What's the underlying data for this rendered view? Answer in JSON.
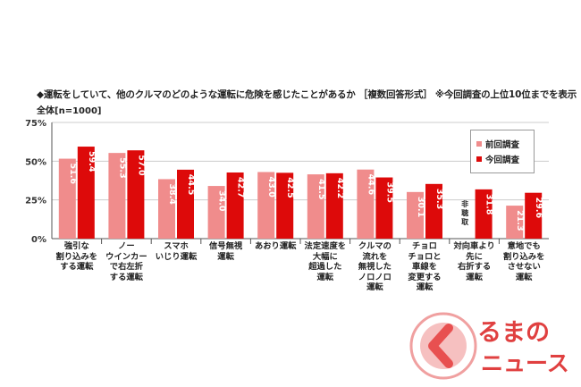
{
  "title": "◆運転をしていて、他のクルマのどのような運転に危険を感じたことがあるか ［複数回答形式］ ※今回調査の上位10位までを表示",
  "sample": "全体[n=1000]",
  "logo_text": [
    "るまの",
    "ニュース"
  ],
  "colors": {
    "previous": "#f08c8c",
    "current": "#dd0a0a",
    "grid": "#cccccc",
    "axis": "#555555"
  },
  "chart_data": {
    "type": "bar",
    "ylim": [
      0,
      75
    ],
    "yticks": [
      "0%",
      "25%",
      "50%",
      "75%"
    ],
    "grid": true,
    "legend_position": "top-right",
    "categories": [
      "強引な\n割り込みを\nする運転",
      "ノー\nウインカー\nで右左折\nする運転",
      "スマホ\nいじり運転",
      "信号無視\n運転",
      "あおり運転",
      "法定速度を\n大幅に\n超過した\n運転",
      "クルマの\n流れを\n無視した\nノロノロ\n運転",
      "チョロ\nチョロと\n車線を\n変更する\n運転",
      "対向車より\n先に\n右折する\n運転",
      "意地でも\n割り込みを\nさせない\n運転"
    ],
    "series": [
      {
        "name": "前回調査",
        "values": [
          51.6,
          55.3,
          38.4,
          34.0,
          43.0,
          41.5,
          44.6,
          30.1,
          null,
          21.3
        ],
        "labels": [
          "51.6",
          "55.3",
          "38.4",
          "34.0",
          "43.0",
          "41.5",
          "44.6",
          "30.1",
          "",
          "21.3"
        ]
      },
      {
        "name": "今回調査",
        "values": [
          59.4,
          57.0,
          44.5,
          42.7,
          42.5,
          42.2,
          39.5,
          35.3,
          31.8,
          29.6
        ],
        "labels": [
          "59.4",
          "57.0",
          "44.5",
          "42.7",
          "42.5",
          "42.2",
          "39.5",
          "35.3",
          "31.8",
          "29.6"
        ]
      }
    ],
    "annotations": [
      "非聴取"
    ]
  }
}
